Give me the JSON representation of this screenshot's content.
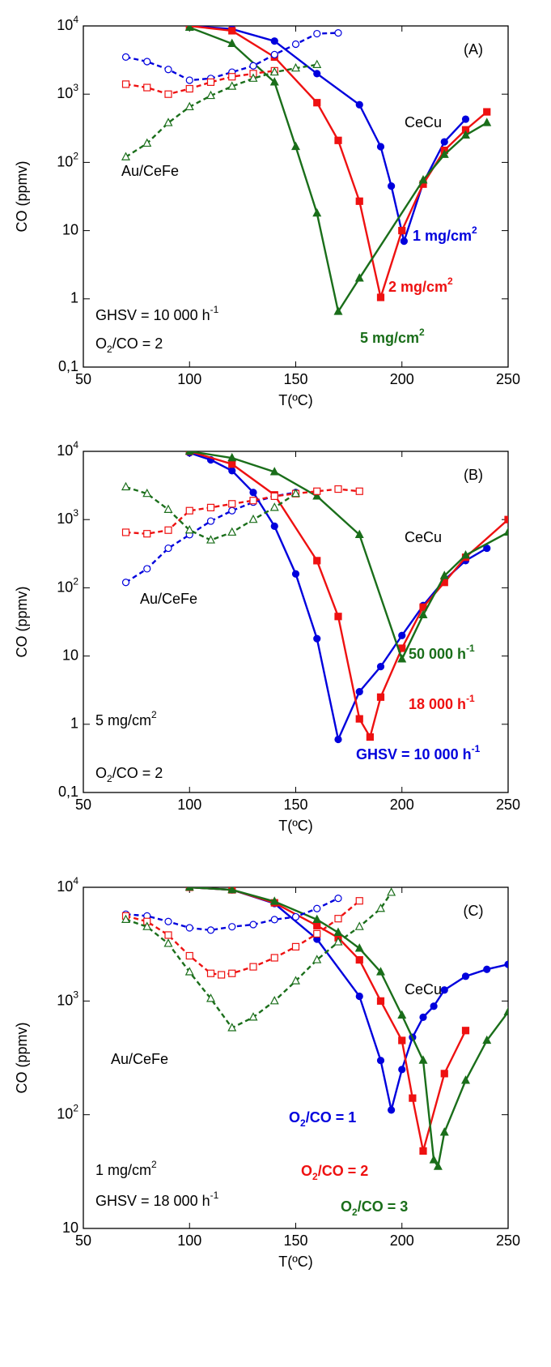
{
  "chart_data": [
    {
      "type": "line",
      "panel_label": "(A)",
      "xlabel": "T(ºC)",
      "ylabel": "CO (ppmv)",
      "yscale": "log",
      "xlim": [
        50,
        250
      ],
      "ylim": [
        0.1,
        10000
      ],
      "xticks": [
        50,
        100,
        150,
        200,
        250
      ],
      "yticks": [
        {
          "value": 0.1,
          "label": "0,1"
        },
        1,
        10,
        {
          "value": 100,
          "label": "10",
          "exponent": "2"
        },
        {
          "value": 1000,
          "label": "10",
          "exponent": "3"
        },
        {
          "value": 10000,
          "label": "10",
          "exponent": "4"
        }
      ],
      "annotations": [
        {
          "parts": [
            {
              "text": "CeCu"
            }
          ],
          "color": "#000000"
        },
        {
          "parts": [
            {
              "text": "Au/CeFe"
            }
          ],
          "color": "#000000"
        },
        {
          "parts": [
            {
              "text": "1 mg/cm"
            },
            {
              "text": "2",
              "script": "sup"
            }
          ],
          "color": "#0000dd",
          "bold": true
        },
        {
          "parts": [
            {
              "text": "2 mg/cm"
            },
            {
              "text": "2",
              "script": "sup"
            }
          ],
          "color": "#ee1111",
          "bold": true
        },
        {
          "parts": [
            {
              "text": "5 mg/cm"
            },
            {
              "text": "2",
              "script": "sup"
            }
          ],
          "color": "#1a6e1a",
          "bold": true
        },
        {
          "parts": [
            {
              "text": "GHSV = 10 000 h"
            },
            {
              "text": "-1",
              "script": "sup"
            }
          ],
          "color": "#000000"
        },
        {
          "parts": [
            {
              "text": "O"
            },
            {
              "text": "2",
              "script": "sub"
            },
            {
              "text": "/CO = 2"
            }
          ],
          "color": "#000000"
        }
      ],
      "series": [
        {
          "color": "#0000dd",
          "marker": "circle",
          "filled": true,
          "dashed": false,
          "x": [
            100,
            120,
            140,
            160,
            180,
            190,
            195,
            201,
            210,
            220,
            230
          ],
          "values": [
            10000,
            9000,
            6000,
            2000,
            700,
            170,
            45,
            7,
            50,
            200,
            430
          ]
        },
        {
          "color": "#ee1111",
          "marker": "square",
          "filled": true,
          "dashed": false,
          "x": [
            100,
            120,
            140,
            160,
            170,
            180,
            190,
            200,
            210,
            220,
            230,
            240
          ],
          "values": [
            10000,
            8500,
            3500,
            750,
            210,
            27,
            1.05,
            10,
            48,
            150,
            300,
            550
          ]
        },
        {
          "color": "#1a6e1a",
          "marker": "triangle",
          "filled": true,
          "dashed": false,
          "x": [
            100,
            120,
            140,
            150,
            160,
            170,
            180,
            210,
            220,
            230,
            240
          ],
          "values": [
            9500,
            5500,
            1500,
            170,
            18,
            0.65,
            2,
            55,
            130,
            250,
            380
          ]
        },
        {
          "color": "#0000dd",
          "marker": "circle",
          "filled": false,
          "dashed": true,
          "x": [
            70,
            80,
            90,
            100,
            110,
            120,
            130,
            140,
            150,
            160,
            170
          ],
          "values": [
            3500,
            3000,
            2300,
            1600,
            1700,
            2100,
            2600,
            3800,
            5400,
            7700,
            7900
          ]
        },
        {
          "color": "#ee1111",
          "marker": "square",
          "filled": false,
          "dashed": true,
          "x": [
            70,
            80,
            90,
            100,
            110,
            120,
            130,
            140
          ],
          "values": [
            1400,
            1250,
            1000,
            1200,
            1500,
            1800,
            2000,
            2200
          ]
        },
        {
          "color": "#1a6e1a",
          "marker": "triangle",
          "filled": false,
          "dashed": true,
          "x": [
            70,
            80,
            90,
            100,
            110,
            120,
            130,
            140,
            150,
            160
          ],
          "values": [
            120,
            190,
            380,
            650,
            950,
            1300,
            1700,
            2100,
            2400,
            2700
          ]
        }
      ]
    },
    {
      "type": "line",
      "panel_label": "(B)",
      "xlabel": "T(ºC)",
      "ylabel": "CO (ppmv)",
      "yscale": "log",
      "xlim": [
        50,
        250
      ],
      "ylim": [
        0.1,
        10000
      ],
      "xticks": [
        50,
        100,
        150,
        200,
        250
      ],
      "yticks": [
        {
          "value": 0.1,
          "label": "0,1"
        },
        1,
        10,
        {
          "value": 100,
          "label": "10",
          "exponent": "2"
        },
        {
          "value": 1000,
          "label": "10",
          "exponent": "3"
        },
        {
          "value": 10000,
          "label": "10",
          "exponent": "4"
        }
      ],
      "annotations": [
        {
          "parts": [
            {
              "text": "CeCu"
            }
          ],
          "color": "#000000"
        },
        {
          "parts": [
            {
              "text": "Au/CeFe"
            }
          ],
          "color": "#000000"
        },
        {
          "parts": [
            {
              "text": "50 000 h"
            },
            {
              "text": "-1",
              "script": "sup"
            }
          ],
          "color": "#1a6e1a",
          "bold": true
        },
        {
          "parts": [
            {
              "text": "18 000 h"
            },
            {
              "text": "-1",
              "script": "sup"
            }
          ],
          "color": "#ee1111",
          "bold": true
        },
        {
          "parts": [
            {
              "text": "GHSV = 10 000 h"
            },
            {
              "text": "-1",
              "script": "sup"
            }
          ],
          "color": "#0000dd",
          "bold": true
        },
        {
          "parts": [
            {
              "text": "5 mg/cm"
            },
            {
              "text": "2",
              "script": "sup"
            }
          ],
          "color": "#000000"
        },
        {
          "parts": [
            {
              "text": "O"
            },
            {
              "text": "2",
              "script": "sub"
            },
            {
              "text": "/CO = 2"
            }
          ],
          "color": "#000000"
        }
      ],
      "series": [
        {
          "color": "#0000dd",
          "marker": "circle",
          "filled": true,
          "dashed": false,
          "x": [
            100,
            110,
            120,
            130,
            140,
            150,
            160,
            170,
            180,
            190,
            200,
            210,
            220,
            230,
            240
          ],
          "values": [
            9500,
            7500,
            5200,
            2500,
            800,
            160,
            18,
            0.6,
            3,
            7,
            20,
            55,
            130,
            250,
            380
          ]
        },
        {
          "color": "#ee1111",
          "marker": "square",
          "filled": true,
          "dashed": false,
          "x": [
            100,
            120,
            140,
            160,
            170,
            180,
            185,
            190,
            200,
            210,
            220,
            230,
            250
          ],
          "values": [
            10000,
            6500,
            2300,
            250,
            38,
            1.2,
            0.65,
            2.5,
            13,
            52,
            120,
            280,
            1000
          ]
        },
        {
          "color": "#1a6e1a",
          "marker": "triangle",
          "filled": true,
          "dashed": false,
          "x": [
            100,
            120,
            140,
            160,
            180,
            200,
            210,
            220,
            230,
            250
          ],
          "values": [
            10000,
            8000,
            5000,
            2200,
            600,
            9,
            40,
            150,
            300,
            650
          ]
        },
        {
          "color": "#0000dd",
          "marker": "circle",
          "filled": false,
          "dashed": true,
          "x": [
            70,
            80,
            90,
            100,
            110,
            120,
            130,
            140,
            150
          ],
          "values": [
            120,
            190,
            380,
            600,
            950,
            1350,
            1800,
            2200,
            2500
          ]
        },
        {
          "color": "#ee1111",
          "marker": "square",
          "filled": false,
          "dashed": true,
          "x": [
            70,
            80,
            90,
            100,
            110,
            120,
            130,
            140,
            150,
            160,
            170,
            180
          ],
          "values": [
            650,
            620,
            700,
            1350,
            1500,
            1700,
            1900,
            2200,
            2400,
            2600,
            2800,
            2600
          ]
        },
        {
          "color": "#1a6e1a",
          "marker": "triangle",
          "filled": false,
          "dashed": true,
          "x": [
            70,
            80,
            90,
            100,
            110,
            120,
            130,
            140,
            150
          ],
          "values": [
            3000,
            2400,
            1400,
            700,
            500,
            650,
            1000,
            1500,
            2400
          ]
        }
      ]
    },
    {
      "type": "line",
      "panel_label": "(C)",
      "xlabel": "T(ºC)",
      "ylabel": "CO (ppmv)",
      "yscale": "log",
      "xlim": [
        50,
        250
      ],
      "ylim": [
        10,
        10000
      ],
      "xticks": [
        50,
        100,
        150,
        200,
        250
      ],
      "yticks": [
        10,
        {
          "value": 100,
          "label": "10",
          "exponent": "2"
        },
        {
          "value": 1000,
          "label": "10",
          "exponent": "3"
        },
        {
          "value": 10000,
          "label": "10",
          "exponent": "4"
        }
      ],
      "annotations": [
        {
          "parts": [
            {
              "text": "CeCu"
            }
          ],
          "color": "#000000"
        },
        {
          "parts": [
            {
              "text": "Au/CeFe"
            }
          ],
          "color": "#000000"
        },
        {
          "parts": [
            {
              "text": "O"
            },
            {
              "text": "2",
              "script": "sub"
            },
            {
              "text": "/CO = 1"
            }
          ],
          "color": "#0000dd",
          "bold": true
        },
        {
          "parts": [
            {
              "text": "O"
            },
            {
              "text": "2",
              "script": "sub"
            },
            {
              "text": "/CO = 2"
            }
          ],
          "color": "#ee1111",
          "bold": true
        },
        {
          "parts": [
            {
              "text": "O"
            },
            {
              "text": "2",
              "script": "sub"
            },
            {
              "text": "/CO = 3"
            }
          ],
          "color": "#1a6e1a",
          "bold": true
        },
        {
          "parts": [
            {
              "text": "1 mg/cm"
            },
            {
              "text": "2",
              "script": "sup"
            }
          ],
          "color": "#000000"
        },
        {
          "parts": [
            {
              "text": "GHSV = 18 000 h"
            },
            {
              "text": "-1",
              "script": "sup"
            }
          ],
          "color": "#000000"
        }
      ],
      "series": [
        {
          "color": "#0000dd",
          "marker": "circle",
          "filled": true,
          "dashed": false,
          "x": [
            100,
            120,
            140,
            160,
            180,
            190,
            195,
            200,
            205,
            210,
            215,
            220,
            230,
            240,
            250
          ],
          "values": [
            10000,
            9500,
            7200,
            3500,
            1100,
            300,
            110,
            250,
            480,
            720,
            900,
            1250,
            1650,
            1900,
            2100
          ]
        },
        {
          "color": "#ee1111",
          "marker": "square",
          "filled": true,
          "dashed": false,
          "x": [
            100,
            120,
            140,
            160,
            170,
            180,
            190,
            200,
            205,
            210,
            220,
            230
          ],
          "values": [
            10000,
            9500,
            7300,
            4600,
            3600,
            2300,
            1000,
            450,
            140,
            48,
            230,
            550
          ]
        },
        {
          "color": "#1a6e1a",
          "marker": "triangle",
          "filled": true,
          "dashed": false,
          "x": [
            100,
            120,
            140,
            160,
            170,
            180,
            190,
            200,
            210,
            215,
            217,
            220,
            230,
            240,
            250
          ],
          "values": [
            10000,
            9500,
            7500,
            5200,
            4000,
            2900,
            1800,
            750,
            300,
            40,
            35,
            70,
            200,
            450,
            800
          ]
        },
        {
          "color": "#0000dd",
          "marker": "circle",
          "filled": false,
          "dashed": true,
          "x": [
            70,
            80,
            90,
            100,
            110,
            120,
            130,
            140,
            150,
            160,
            170
          ],
          "values": [
            5800,
            5600,
            5000,
            4400,
            4200,
            4500,
            4700,
            5200,
            5500,
            6500,
            8000
          ]
        },
        {
          "color": "#ee1111",
          "marker": "square",
          "filled": false,
          "dashed": true,
          "x": [
            70,
            80,
            90,
            100,
            110,
            115,
            120,
            130,
            140,
            150,
            160,
            170,
            180
          ],
          "values": [
            5600,
            5000,
            3800,
            2500,
            1750,
            1700,
            1750,
            2000,
            2400,
            3000,
            3900,
            5300,
            7600
          ]
        },
        {
          "color": "#1a6e1a",
          "marker": "triangle",
          "filled": false,
          "dashed": true,
          "x": [
            70,
            80,
            90,
            100,
            110,
            120,
            130,
            140,
            150,
            160,
            170,
            180,
            190,
            195
          ],
          "values": [
            5200,
            4500,
            3200,
            1800,
            1050,
            580,
            720,
            1000,
            1500,
            2300,
            3300,
            4500,
            6500,
            9000
          ]
        }
      ]
    }
  ]
}
